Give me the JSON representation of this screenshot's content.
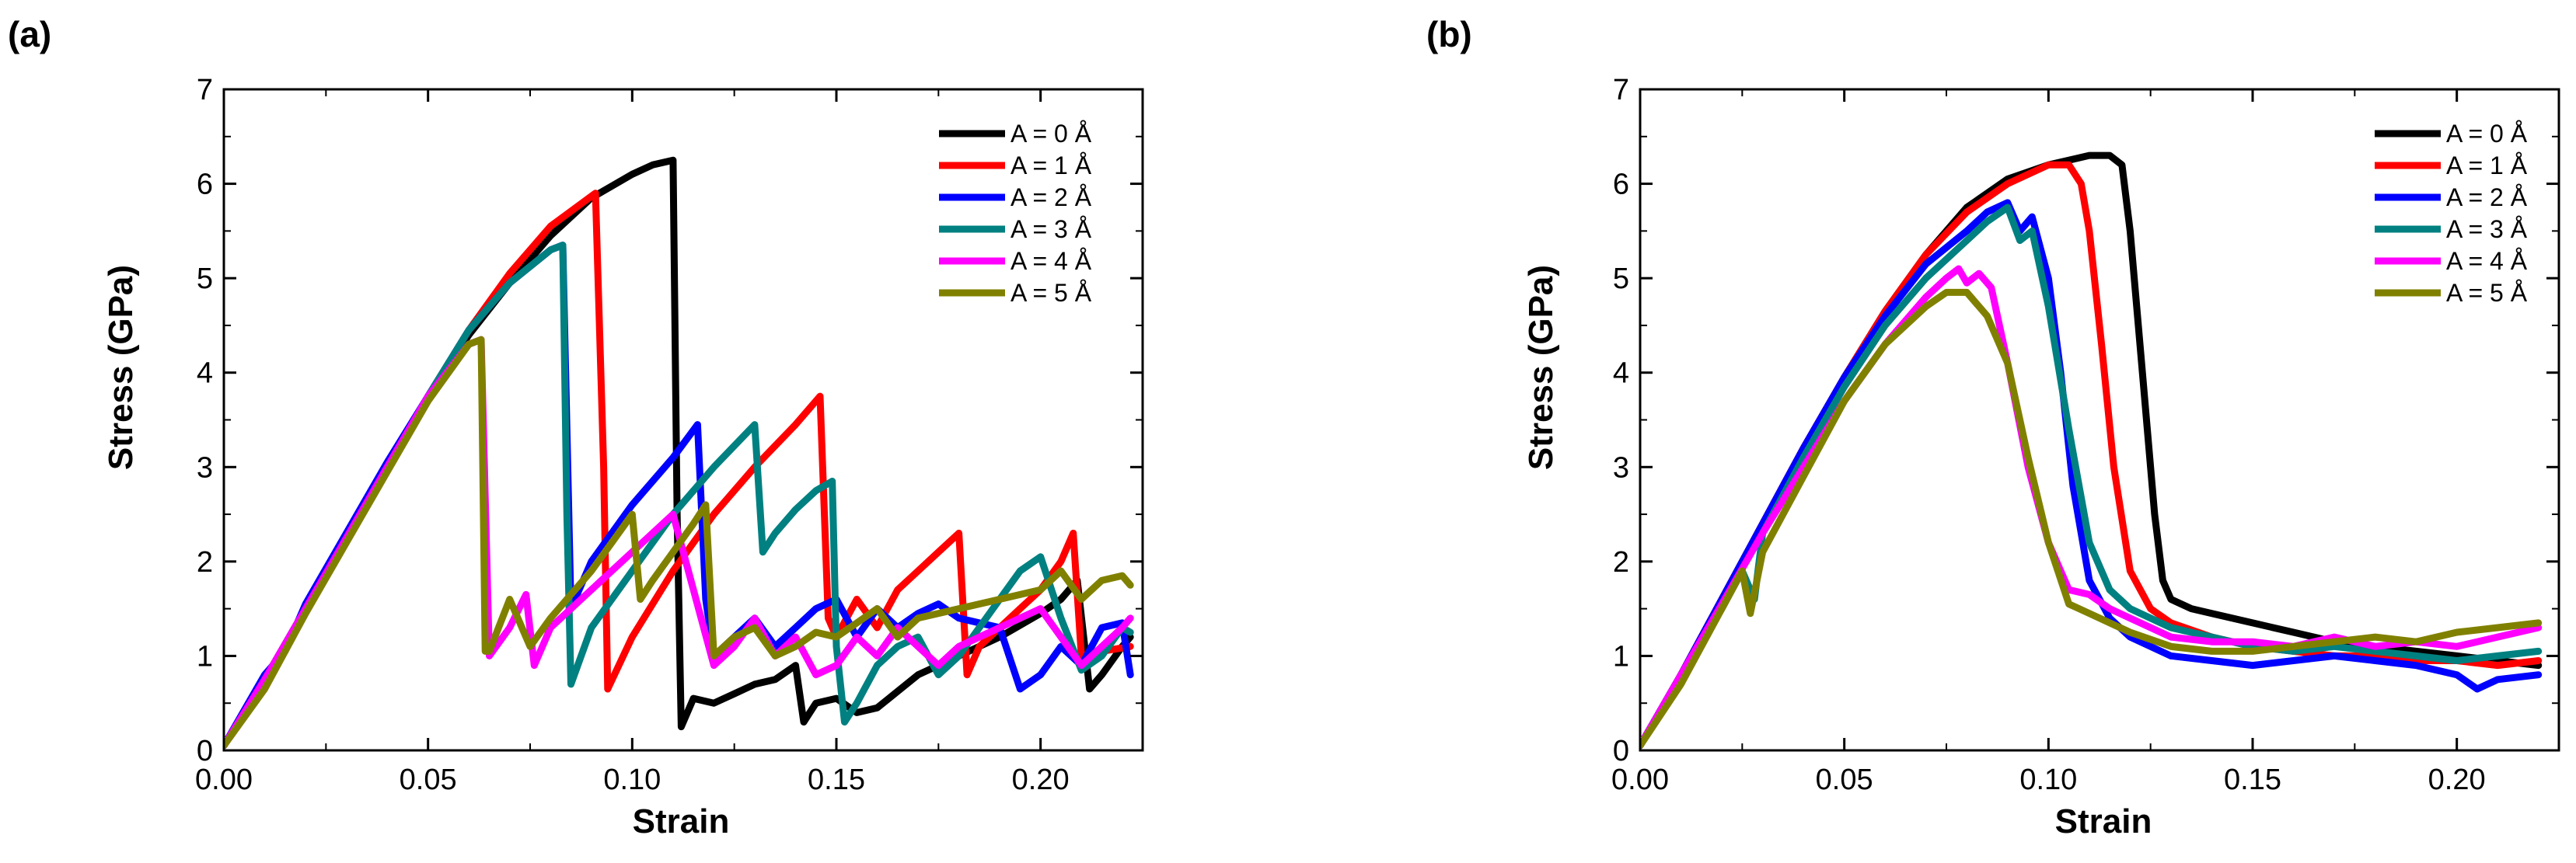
{
  "chart_data": [
    {
      "panel_label": "(a)",
      "type": "line",
      "xlabel": "Strain",
      "ylabel": "Stress (GPa)",
      "xlim": [
        0,
        0.225
      ],
      "ylim": [
        0,
        7
      ],
      "xticks": [
        "0.00",
        "0.05",
        "0.10",
        "0.15",
        "0.20"
      ],
      "xtick_values": [
        0,
        0.05,
        0.1,
        0.15,
        0.2
      ],
      "yticks": [
        "0",
        "1",
        "2",
        "3",
        "4",
        "5",
        "6",
        "7"
      ],
      "ytick_values": [
        0,
        1,
        2,
        3,
        4,
        5,
        6,
        7
      ],
      "legend_position": "top-right",
      "series": [
        {
          "name": "A = 0 Å",
          "color": "#000000",
          "x": [
            0,
            0.01,
            0.02,
            0.03,
            0.04,
            0.05,
            0.06,
            0.07,
            0.08,
            0.09,
            0.1,
            0.105,
            0.11,
            0.111,
            0.112,
            0.115,
            0.12,
            0.125,
            0.13,
            0.135,
            0.14,
            0.142,
            0.145,
            0.15,
            0.155,
            0.16,
            0.17,
            0.18,
            0.19,
            0.2,
            0.205,
            0.209,
            0.212,
            0.215,
            0.22,
            0.222
          ],
          "y": [
            0.05,
            0.75,
            1.5,
            2.25,
            3.0,
            3.75,
            4.4,
            4.95,
            5.45,
            5.85,
            6.1,
            6.2,
            6.25,
            2.5,
            0.25,
            0.55,
            0.5,
            0.6,
            0.7,
            0.75,
            0.9,
            0.3,
            0.5,
            0.55,
            0.4,
            0.45,
            0.8,
            1.0,
            1.2,
            1.45,
            1.6,
            1.8,
            0.65,
            0.8,
            1.1,
            1.2
          ]
        },
        {
          "name": "A = 1 Å",
          "color": "#ff0000",
          "x": [
            0,
            0.01,
            0.02,
            0.03,
            0.04,
            0.05,
            0.06,
            0.07,
            0.08,
            0.091,
            0.093,
            0.094,
            0.1,
            0.11,
            0.12,
            0.13,
            0.14,
            0.146,
            0.148,
            0.15,
            0.155,
            0.16,
            0.165,
            0.17,
            0.175,
            0.18,
            0.182,
            0.185,
            0.19,
            0.195,
            0.2,
            0.205,
            0.208,
            0.21,
            0.215,
            0.222
          ],
          "y": [
            0.05,
            0.75,
            1.5,
            2.25,
            3.0,
            3.75,
            4.45,
            5.05,
            5.55,
            5.9,
            3.0,
            0.65,
            1.2,
            1.9,
            2.5,
            3.0,
            3.45,
            3.75,
            1.4,
            1.2,
            1.6,
            1.3,
            1.7,
            1.9,
            2.1,
            2.3,
            0.8,
            1.1,
            1.3,
            1.5,
            1.7,
            2.0,
            2.3,
            1.0,
            1.05,
            1.1
          ]
        },
        {
          "name": "A = 2 Å",
          "color": "#0000ff",
          "x": [
            0,
            0.01,
            0.015,
            0.02,
            0.03,
            0.04,
            0.05,
            0.06,
            0.07,
            0.08,
            0.083,
            0.085,
            0.09,
            0.1,
            0.11,
            0.116,
            0.118,
            0.12,
            0.125,
            0.13,
            0.135,
            0.14,
            0.145,
            0.15,
            0.155,
            0.16,
            0.165,
            0.17,
            0.175,
            0.18,
            0.19,
            0.195,
            0.2,
            0.205,
            0.21,
            0.215,
            0.22,
            0.222
          ],
          "y": [
            0.05,
            0.8,
            1.05,
            1.55,
            2.3,
            3.05,
            3.75,
            4.45,
            4.95,
            5.3,
            5.35,
            1.5,
            2.0,
            2.6,
            3.1,
            3.45,
            1.6,
            1.0,
            1.2,
            1.4,
            1.1,
            1.3,
            1.5,
            1.6,
            1.2,
            1.5,
            1.3,
            1.45,
            1.55,
            1.4,
            1.3,
            0.65,
            0.8,
            1.1,
            0.9,
            1.3,
            1.35,
            0.8
          ]
        },
        {
          "name": "A = 3 Å",
          "color": "#008080",
          "x": [
            0,
            0.01,
            0.02,
            0.03,
            0.04,
            0.05,
            0.06,
            0.07,
            0.08,
            0.083,
            0.084,
            0.085,
            0.09,
            0.1,
            0.11,
            0.12,
            0.13,
            0.132,
            0.135,
            0.14,
            0.145,
            0.149,
            0.15,
            0.152,
            0.155,
            0.16,
            0.165,
            0.17,
            0.175,
            0.18,
            0.185,
            0.19,
            0.195,
            0.2,
            0.205,
            0.21,
            0.215,
            0.22,
            0.222
          ],
          "y": [
            0.05,
            0.75,
            1.5,
            2.25,
            3.0,
            3.75,
            4.45,
            4.95,
            5.3,
            5.35,
            2.5,
            0.7,
            1.3,
            1.9,
            2.5,
            3.0,
            3.45,
            2.1,
            2.3,
            2.55,
            2.75,
            2.85,
            1.1,
            0.3,
            0.5,
            0.9,
            1.1,
            1.2,
            0.8,
            1.0,
            1.3,
            1.6,
            1.9,
            2.05,
            1.4,
            0.85,
            1.0,
            1.3,
            1.25
          ]
        },
        {
          "name": "A = 4 Å",
          "color": "#ff00ff",
          "x": [
            0,
            0.01,
            0.02,
            0.03,
            0.04,
            0.05,
            0.06,
            0.063,
            0.065,
            0.07,
            0.074,
            0.076,
            0.08,
            0.09,
            0.1,
            0.11,
            0.12,
            0.125,
            0.13,
            0.135,
            0.14,
            0.145,
            0.15,
            0.155,
            0.16,
            0.165,
            0.17,
            0.175,
            0.18,
            0.19,
            0.2,
            0.21,
            0.215,
            0.22,
            0.222
          ],
          "y": [
            0.05,
            0.75,
            1.5,
            2.25,
            3.0,
            3.75,
            4.3,
            4.35,
            1.0,
            1.3,
            1.65,
            0.9,
            1.3,
            1.7,
            2.1,
            2.5,
            0.9,
            1.1,
            1.4,
            1.0,
            1.2,
            0.8,
            0.9,
            1.2,
            1.0,
            1.3,
            1.1,
            0.9,
            1.1,
            1.3,
            1.5,
            0.9,
            1.1,
            1.3,
            1.4
          ]
        },
        {
          "name": "A = 5 Å",
          "color": "#808000",
          "x": [
            0,
            0.01,
            0.02,
            0.03,
            0.04,
            0.05,
            0.06,
            0.063,
            0.064,
            0.065,
            0.07,
            0.075,
            0.08,
            0.09,
            0.1,
            0.102,
            0.105,
            0.11,
            0.115,
            0.118,
            0.12,
            0.125,
            0.13,
            0.135,
            0.14,
            0.145,
            0.15,
            0.155,
            0.16,
            0.165,
            0.17,
            0.18,
            0.19,
            0.2,
            0.205,
            0.21,
            0.215,
            0.22,
            0.222
          ],
          "y": [
            0.05,
            0.65,
            1.45,
            2.2,
            2.95,
            3.7,
            4.3,
            4.35,
            1.05,
            1.05,
            1.6,
            1.1,
            1.4,
            1.9,
            2.5,
            1.6,
            1.8,
            2.1,
            2.4,
            2.6,
            1.0,
            1.2,
            1.3,
            1.0,
            1.1,
            1.25,
            1.2,
            1.35,
            1.5,
            1.2,
            1.4,
            1.5,
            1.6,
            1.7,
            1.9,
            1.6,
            1.8,
            1.85,
            1.75
          ]
        }
      ]
    },
    {
      "panel_label": "(b)",
      "type": "line",
      "xlabel": "Strain",
      "ylabel": "Stress (GPa)",
      "xlim": [
        0,
        0.225
      ],
      "ylim": [
        0,
        7
      ],
      "xticks": [
        "0.00",
        "0.05",
        "0.10",
        "0.15",
        "0.20"
      ],
      "xtick_values": [
        0,
        0.05,
        0.1,
        0.15,
        0.2
      ],
      "yticks": [
        "0",
        "1",
        "2",
        "3",
        "4",
        "5",
        "6",
        "7"
      ],
      "ytick_values": [
        0,
        1,
        2,
        3,
        4,
        5,
        6,
        7
      ],
      "legend_position": "top-right",
      "series": [
        {
          "name": "A = 0 Å",
          "color": "#000000",
          "x": [
            0,
            0.01,
            0.02,
            0.03,
            0.04,
            0.05,
            0.06,
            0.07,
            0.08,
            0.09,
            0.1,
            0.11,
            0.115,
            0.118,
            0.12,
            0.123,
            0.126,
            0.128,
            0.13,
            0.135,
            0.14,
            0.15,
            0.16,
            0.17,
            0.18,
            0.19,
            0.2,
            0.21,
            0.22
          ],
          "y": [
            0.05,
            0.8,
            1.6,
            2.4,
            3.2,
            3.95,
            4.65,
            5.25,
            5.75,
            6.05,
            6.2,
            6.3,
            6.3,
            6.2,
            5.5,
            4.0,
            2.5,
            1.8,
            1.6,
            1.5,
            1.45,
            1.35,
            1.25,
            1.15,
            1.1,
            1.05,
            1.0,
            0.95,
            0.9
          ]
        },
        {
          "name": "A = 1 Å",
          "color": "#ff0000",
          "x": [
            0,
            0.01,
            0.02,
            0.03,
            0.04,
            0.05,
            0.06,
            0.07,
            0.08,
            0.09,
            0.1,
            0.105,
            0.108,
            0.11,
            0.113,
            0.116,
            0.12,
            0.125,
            0.13,
            0.14,
            0.15,
            0.16,
            0.17,
            0.18,
            0.19,
            0.2,
            0.21,
            0.22
          ],
          "y": [
            0.05,
            0.8,
            1.6,
            2.4,
            3.2,
            3.95,
            4.65,
            5.25,
            5.7,
            6.0,
            6.2,
            6.2,
            6.0,
            5.5,
            4.3,
            3.0,
            1.9,
            1.5,
            1.35,
            1.2,
            1.1,
            1.05,
            1.0,
            1.0,
            0.95,
            0.95,
            0.9,
            0.95
          ]
        },
        {
          "name": "A = 2 Å",
          "color": "#0000ff",
          "x": [
            0,
            0.01,
            0.02,
            0.03,
            0.04,
            0.05,
            0.06,
            0.07,
            0.08,
            0.085,
            0.09,
            0.093,
            0.096,
            0.1,
            0.103,
            0.106,
            0.11,
            0.115,
            0.12,
            0.13,
            0.14,
            0.15,
            0.16,
            0.17,
            0.18,
            0.19,
            0.2,
            0.205,
            0.21,
            0.22
          ],
          "y": [
            0.05,
            0.8,
            1.6,
            2.4,
            3.2,
            3.95,
            4.6,
            5.15,
            5.5,
            5.7,
            5.8,
            5.5,
            5.65,
            5.0,
            4.0,
            2.8,
            1.8,
            1.4,
            1.2,
            1.0,
            0.95,
            0.9,
            0.95,
            1.0,
            0.95,
            0.9,
            0.8,
            0.65,
            0.75,
            0.8
          ]
        },
        {
          "name": "A = 3 Å",
          "color": "#008080",
          "x": [
            0,
            0.01,
            0.02,
            0.025,
            0.028,
            0.03,
            0.04,
            0.05,
            0.06,
            0.07,
            0.08,
            0.085,
            0.09,
            0.093,
            0.096,
            0.1,
            0.105,
            0.11,
            0.115,
            0.12,
            0.13,
            0.14,
            0.15,
            0.16,
            0.17,
            0.18,
            0.19,
            0.2,
            0.21,
            0.22
          ],
          "y": [
            0.05,
            0.8,
            1.5,
            1.9,
            1.6,
            2.3,
            3.1,
            3.85,
            4.5,
            5.0,
            5.4,
            5.6,
            5.75,
            5.4,
            5.5,
            4.7,
            3.4,
            2.2,
            1.7,
            1.5,
            1.3,
            1.2,
            1.1,
            1.05,
            1.1,
            1.05,
            1.0,
            0.95,
            1.0,
            1.05
          ]
        },
        {
          "name": "A = 4 Å",
          "color": "#ff00ff",
          "x": [
            0,
            0.01,
            0.02,
            0.03,
            0.04,
            0.05,
            0.06,
            0.07,
            0.075,
            0.078,
            0.08,
            0.083,
            0.086,
            0.09,
            0.095,
            0.1,
            0.105,
            0.11,
            0.115,
            0.12,
            0.13,
            0.14,
            0.15,
            0.16,
            0.17,
            0.18,
            0.19,
            0.2,
            0.21,
            0.22
          ],
          "y": [
            0.05,
            0.8,
            1.55,
            2.3,
            3.0,
            3.7,
            4.3,
            4.8,
            5.0,
            5.1,
            4.95,
            5.05,
            4.9,
            4.1,
            3.0,
            2.2,
            1.7,
            1.65,
            1.5,
            1.4,
            1.2,
            1.15,
            1.15,
            1.1,
            1.2,
            1.1,
            1.15,
            1.1,
            1.2,
            1.3
          ]
        },
        {
          "name": "A = 5 Å",
          "color": "#808000",
          "x": [
            0,
            0.01,
            0.02,
            0.025,
            0.027,
            0.03,
            0.04,
            0.05,
            0.06,
            0.07,
            0.075,
            0.08,
            0.085,
            0.09,
            0.095,
            0.1,
            0.105,
            0.11,
            0.12,
            0.13,
            0.14,
            0.15,
            0.16,
            0.17,
            0.18,
            0.19,
            0.2,
            0.21,
            0.22
          ],
          "y": [
            0.05,
            0.7,
            1.5,
            1.9,
            1.45,
            2.1,
            2.9,
            3.7,
            4.3,
            4.7,
            4.85,
            4.85,
            4.6,
            4.1,
            3.1,
            2.2,
            1.55,
            1.45,
            1.25,
            1.1,
            1.05,
            1.05,
            1.1,
            1.15,
            1.2,
            1.15,
            1.25,
            1.3,
            1.35
          ]
        }
      ]
    }
  ]
}
